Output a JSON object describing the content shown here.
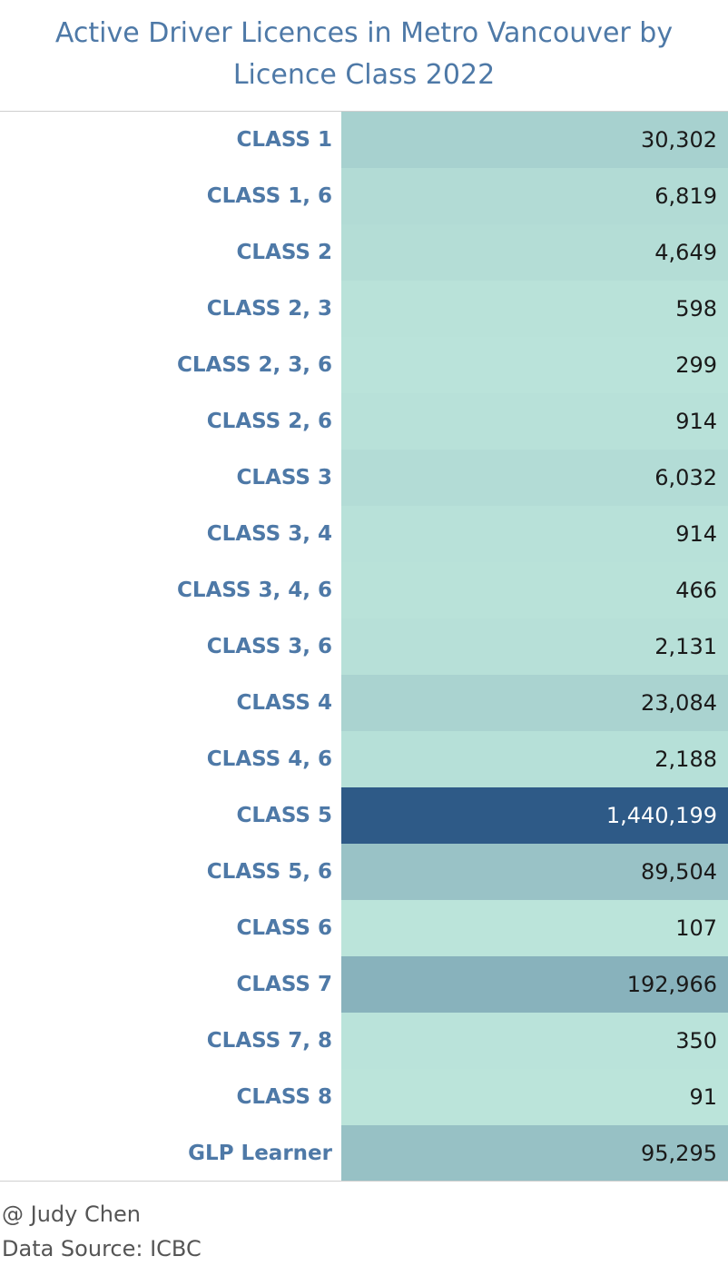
{
  "chart_data": {
    "type": "table",
    "title_lines": [
      "Active Driver Licences in Metro Vancouver by",
      "Licence Class 2022"
    ],
    "categories": [
      "CLASS 1",
      "CLASS 1, 6",
      "CLASS 2",
      "CLASS 2, 3",
      "CLASS 2, 3, 6",
      "CLASS 2, 6",
      "CLASS 3",
      "CLASS 3, 4",
      "CLASS 3, 4, 6",
      "CLASS 3, 6",
      "CLASS 4",
      "CLASS 4, 6",
      "CLASS 5",
      "CLASS 5, 6",
      "CLASS 6",
      "CLASS 7",
      "CLASS 7, 8",
      "CLASS 8",
      "GLP Learner"
    ],
    "values": [
      30302,
      6819,
      4649,
      598,
      299,
      914,
      6032,
      914,
      466,
      2131,
      23084,
      2188,
      1440199,
      89504,
      107,
      192966,
      350,
      91,
      95295
    ],
    "value_labels": [
      "30,302",
      "6,819",
      "4,649",
      "598",
      "299",
      "914",
      "6,032",
      "914",
      "466",
      "2,131",
      "23,084",
      "2,188",
      "1,440,199",
      "89,504",
      "107",
      "192,966",
      "350",
      "91",
      "95,295"
    ],
    "color_scale": [
      "#bce5db",
      "#2e5a87"
    ]
  },
  "footer": {
    "credit": "@ Judy Chen",
    "source": "Data Source: ICBC"
  },
  "colors": {
    "title": "#4e79a7",
    "label": "#4e79a7",
    "cell_low": "#bce5db",
    "cell_high": "#2e5a87"
  }
}
